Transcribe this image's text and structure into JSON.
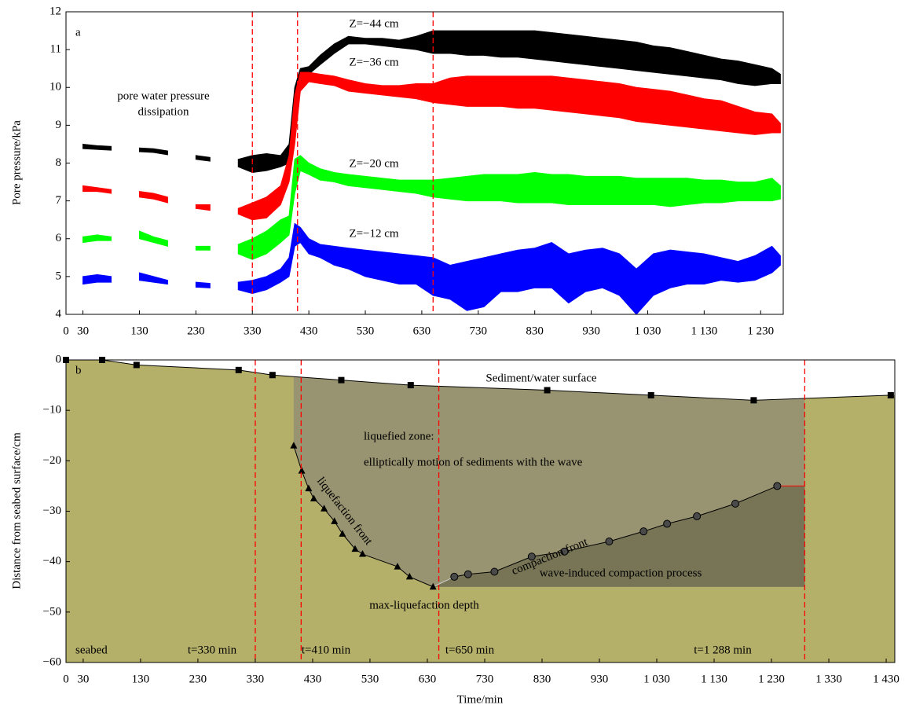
{
  "chart_data": [
    {
      "type": "band",
      "y_label": "Pore pressure/kPa",
      "annotations": [
        "a",
        "pore water pressure",
        "dissipation",
        "Z=−44 cm",
        "Z=−36 cm",
        "Z=−20 cm",
        "Z=−12 cm"
      ],
      "xlim": [
        0,
        1270
      ],
      "ylim": [
        4,
        12
      ],
      "xticks": [
        0,
        30,
        130,
        230,
        330,
        430,
        530,
        630,
        730,
        830,
        930,
        {
          "value": 1030,
          "label": "1 030"
        },
        {
          "value": 1130,
          "label": "1 130"
        },
        {
          "value": 1230,
          "label": "1 230"
        }
      ],
      "yticks": [
        4,
        5,
        6,
        7,
        8,
        9,
        10,
        11,
        12
      ],
      "vlines": [
        330,
        410,
        650
      ],
      "vline_color": "#ff0000",
      "x": [
        30,
        55,
        80,
        105,
        130,
        155,
        180,
        205,
        230,
        255,
        280,
        305,
        330,
        355,
        380,
        395,
        405,
        415,
        430,
        450,
        475,
        500,
        530,
        560,
        590,
        620,
        650,
        680,
        710,
        740,
        770,
        800,
        830,
        860,
        890,
        920,
        950,
        980,
        1010,
        1040,
        1070,
        1100,
        1130,
        1160,
        1190,
        1220,
        1250,
        1265
      ],
      "series": [
        {
          "color": "#000000",
          "low": [
            8.38,
            8.36,
            8.34,
            null,
            8.3,
            8.28,
            8.22,
            null,
            8.1,
            8.05,
            null,
            7.9,
            7.75,
            7.8,
            7.9,
            8.0,
            9.0,
            10.2,
            10.35,
            10.6,
            10.9,
            11.15,
            11.15,
            11.1,
            11.05,
            11.0,
            10.9,
            10.9,
            10.85,
            10.85,
            10.8,
            10.8,
            10.75,
            10.7,
            10.65,
            10.6,
            10.55,
            10.5,
            10.45,
            10.4,
            10.35,
            10.3,
            10.25,
            10.2,
            10.1,
            10.05,
            10.1,
            10.1
          ],
          "high": [
            8.5,
            8.46,
            8.44,
            null,
            8.4,
            8.38,
            8.32,
            null,
            8.2,
            8.15,
            null,
            8.1,
            8.2,
            8.25,
            8.2,
            8.5,
            10.0,
            10.5,
            10.55,
            10.85,
            11.15,
            11.35,
            11.3,
            11.3,
            11.25,
            11.35,
            11.5,
            11.5,
            11.5,
            11.5,
            11.5,
            11.5,
            11.5,
            11.45,
            11.4,
            11.35,
            11.3,
            11.25,
            11.2,
            11.1,
            11.05,
            10.95,
            10.85,
            10.75,
            10.7,
            10.6,
            10.5,
            10.35
          ]
        },
        {
          "color": "#ff0000",
          "low": [
            7.25,
            7.25,
            7.2,
            null,
            7.1,
            7.05,
            6.95,
            null,
            6.8,
            6.75,
            null,
            6.65,
            6.5,
            6.55,
            6.9,
            7.5,
            8.5,
            9.9,
            10.15,
            10.1,
            10.05,
            9.9,
            9.85,
            9.8,
            9.75,
            9.7,
            9.6,
            9.55,
            9.5,
            9.5,
            9.5,
            9.45,
            9.45,
            9.4,
            9.35,
            9.3,
            9.25,
            9.2,
            9.1,
            9.05,
            9.0,
            8.95,
            8.9,
            8.85,
            8.8,
            8.75,
            8.8,
            8.8
          ],
          "high": [
            7.4,
            7.35,
            7.3,
            null,
            7.25,
            7.2,
            7.1,
            null,
            6.9,
            6.9,
            null,
            6.8,
            6.95,
            7.1,
            7.4,
            8.2,
            9.8,
            10.4,
            10.4,
            10.35,
            10.3,
            10.2,
            10.1,
            10.05,
            10.05,
            10.1,
            10.1,
            10.25,
            10.3,
            10.3,
            10.3,
            10.3,
            10.3,
            10.3,
            10.25,
            10.2,
            10.15,
            10.1,
            10.0,
            9.95,
            9.9,
            9.8,
            9.7,
            9.65,
            9.5,
            9.35,
            9.3,
            9.05
          ]
        },
        {
          "color": "#00ff00",
          "low": [
            5.9,
            5.95,
            5.95,
            null,
            6.0,
            5.9,
            5.8,
            null,
            5.7,
            5.7,
            null,
            5.6,
            5.45,
            5.6,
            5.9,
            6.1,
            7.2,
            7.8,
            7.7,
            7.55,
            7.5,
            7.4,
            7.35,
            7.3,
            7.25,
            7.2,
            7.1,
            7.05,
            7.0,
            7.0,
            7.0,
            6.95,
            6.95,
            6.95,
            6.9,
            6.9,
            6.9,
            6.9,
            6.9,
            6.9,
            6.85,
            6.9,
            6.95,
            6.95,
            7.0,
            7.0,
            7.0,
            7.05
          ],
          "high": [
            6.05,
            6.1,
            6.05,
            null,
            6.2,
            6.05,
            5.95,
            null,
            5.8,
            5.8,
            null,
            5.85,
            6.0,
            6.2,
            6.5,
            6.6,
            8.1,
            8.2,
            8.0,
            7.85,
            7.75,
            7.7,
            7.65,
            7.6,
            7.55,
            7.55,
            7.55,
            7.6,
            7.65,
            7.7,
            7.7,
            7.7,
            7.75,
            7.7,
            7.7,
            7.65,
            7.65,
            7.65,
            7.6,
            7.6,
            7.6,
            7.6,
            7.55,
            7.55,
            7.5,
            7.5,
            7.6,
            7.4
          ]
        },
        {
          "color": "#0000ff",
          "low": [
            4.8,
            4.85,
            4.85,
            null,
            4.9,
            4.85,
            4.8,
            null,
            4.72,
            4.7,
            null,
            4.65,
            4.55,
            4.65,
            4.85,
            5.0,
            5.8,
            5.9,
            5.6,
            5.5,
            5.3,
            5.2,
            5.0,
            4.9,
            4.8,
            4.8,
            4.5,
            4.4,
            4.1,
            4.2,
            4.6,
            4.6,
            4.7,
            4.7,
            4.3,
            4.6,
            4.7,
            4.5,
            4.0,
            4.5,
            4.7,
            4.8,
            4.8,
            4.9,
            4.85,
            4.9,
            5.1,
            5.3
          ],
          "high": [
            5.0,
            5.05,
            5.0,
            null,
            5.1,
            5.0,
            4.9,
            null,
            4.85,
            4.82,
            null,
            4.85,
            4.9,
            5.0,
            5.2,
            5.5,
            6.4,
            6.3,
            6.0,
            5.85,
            5.8,
            5.75,
            5.7,
            5.65,
            5.6,
            5.55,
            5.5,
            5.3,
            5.4,
            5.5,
            5.6,
            5.7,
            5.75,
            5.9,
            5.6,
            5.7,
            5.75,
            5.6,
            5.2,
            5.6,
            5.7,
            5.65,
            5.6,
            5.5,
            5.4,
            5.55,
            5.8,
            5.55
          ]
        }
      ]
    },
    {
      "type": "zones",
      "y_label": "Distance from seabed surface/cm",
      "x_label": "Time/min",
      "annotations": [
        "b",
        "Sediment/water surface",
        "liquefied zone:",
        "elliptically motion of sediments with the wave",
        "liquefaction front",
        "compaction front",
        "wave-induced compaction process",
        "max-liquefaction depth",
        "seabed"
      ],
      "xlim": [
        0,
        1445
      ],
      "ylim": [
        -60,
        0
      ],
      "xticks": [
        0,
        30,
        130,
        230,
        330,
        430,
        530,
        630,
        730,
        830,
        930,
        {
          "value": 1030,
          "label": "1 030"
        },
        {
          "value": 1130,
          "label": "1 130"
        },
        {
          "value": 1230,
          "label": "1 230"
        },
        {
          "value": 1330,
          "label": "1 330"
        },
        {
          "value": 1430,
          "label": "1 430"
        }
      ],
      "yticks": [
        {
          "value": -60,
          "label": "−60"
        },
        {
          "value": -50,
          "label": "−50"
        },
        {
          "value": -40,
          "label": "−40"
        },
        {
          "value": -30,
          "label": "−30"
        },
        {
          "value": -20,
          "label": "−20"
        },
        {
          "value": -10,
          "label": "−10"
        },
        0
      ],
      "vlines": [
        330,
        410,
        650,
        1288
      ],
      "vline_color": "#ff0000",
      "vline_labels": [
        "t=330 min",
        "t=410 min",
        "t=650 min",
        "t=1 288 min"
      ],
      "colors": {
        "seabed": "#b4af69",
        "liquefied": "#989370",
        "compaction": "#777556"
      },
      "surface": {
        "x": [
          0,
          63,
          123,
          301,
          360,
          480,
          601,
          839,
          1020,
          1199,
          1438
        ],
        "values": [
          0,
          0,
          -1,
          -2,
          -3,
          -4,
          -5,
          -6,
          -7,
          -8,
          -7
        ]
      },
      "liquefaction_front": {
        "x": [
          397,
          411,
          423,
          432,
          450,
          468,
          482,
          504,
          517,
          578,
          599,
          640
        ],
        "values": [
          -17,
          -22,
          -25.5,
          -27.5,
          -29.5,
          -32,
          -34.5,
          -37.5,
          -38.5,
          -41,
          -43,
          -45
        ]
      },
      "compaction_front": {
        "x": [
          677,
          701,
          747,
          812,
          869,
          947,
          1007,
          1048,
          1100,
          1167,
          1240
        ],
        "values": [
          -43,
          -42.5,
          -42,
          -39,
          -38,
          -36,
          -34,
          -32.5,
          -31,
          -28.5,
          -25
        ]
      }
    }
  ]
}
